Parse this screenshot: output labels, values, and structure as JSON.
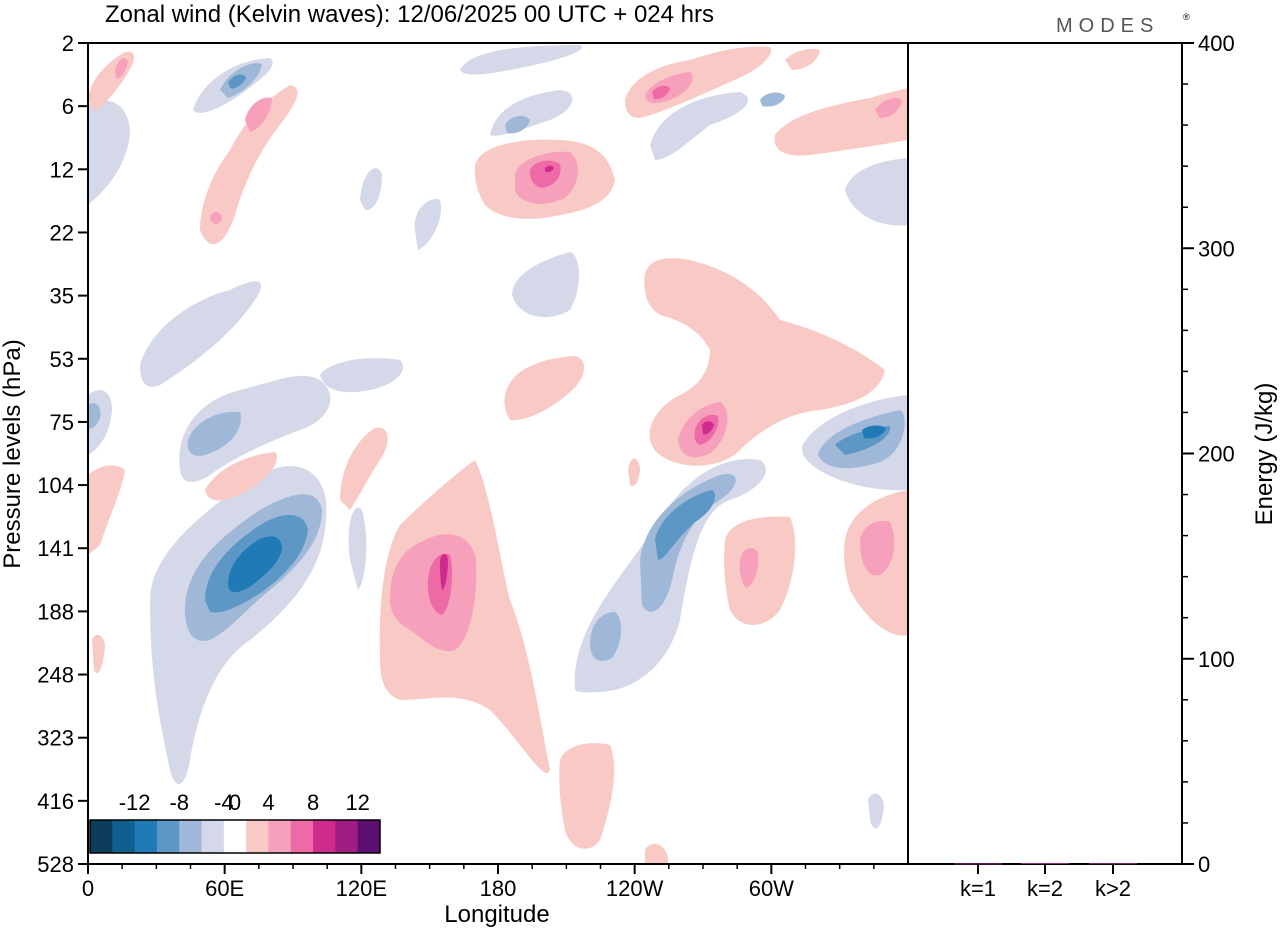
{
  "chart_data": [
    {
      "type": "heatmap",
      "title": "Zonal wind (Kelvin waves):  12/06/2025  00 UTC  + 024 hrs",
      "xlabel": "Longitude",
      "ylabel": "Pressure levels (hPa)",
      "x_ticks": [
        "0",
        "60E",
        "120E",
        "180",
        "120W",
        "60W"
      ],
      "x_tick_degrees": [
        0,
        60,
        120,
        180,
        240,
        300
      ],
      "xlim": [
        0,
        360
      ],
      "y_ticks": [
        "2",
        "6",
        "12",
        "22",
        "35",
        "53",
        "75",
        "104",
        "141",
        "188",
        "248",
        "323",
        "416",
        "528"
      ],
      "colorbar": {
        "labels": [
          "-12",
          "-8",
          "-4",
          "0",
          "4",
          "8",
          "12"
        ],
        "levels": [
          -14,
          -12,
          -10,
          -8,
          -6,
          -4,
          -2,
          2,
          4,
          6,
          8,
          10,
          12,
          14
        ],
        "colors": [
          "#0c3d5c",
          "#0f5f8f",
          "#1f7ab5",
          "#5d97c6",
          "#9fb8d8",
          "#d4d8e8",
          "#ffffff",
          "#f9c9c5",
          "#f6a0bb",
          "#ee6aa6",
          "#cf2b8e",
          "#a01c83",
          "#5c0f70"
        ]
      },
      "features": [
        {
          "sign": "negative",
          "level": -12,
          "center_lon": 62,
          "center_p": 141
        },
        {
          "sign": "negative",
          "level": -8,
          "center_lon": 80,
          "center_p": 141
        },
        {
          "sign": "negative",
          "level": -6,
          "center_lon": 230,
          "center_p": 141
        },
        {
          "sign": "negative",
          "level": -6,
          "center_lon": 345,
          "center_p": 75
        },
        {
          "sign": "negative",
          "level": -6,
          "center_lon": 58,
          "center_p": 4
        },
        {
          "sign": "positive",
          "level": 8,
          "center_lon": 155,
          "center_p": 141
        },
        {
          "sign": "positive",
          "level": 8,
          "center_lon": 200,
          "center_p": 12
        },
        {
          "sign": "positive",
          "level": 8,
          "center_lon": 275,
          "center_p": 75
        },
        {
          "sign": "positive",
          "level": 6,
          "center_lon": 345,
          "center_p": 141
        },
        {
          "sign": "positive",
          "level": 6,
          "center_lon": 285,
          "center_p": 141
        },
        {
          "sign": "positive",
          "level": 8,
          "center_lon": 255,
          "center_p": 5
        }
      ]
    },
    {
      "type": "bar",
      "ylabel": "Energy (J/kg)",
      "categories": [
        "k=1",
        "k=2",
        "k>2"
      ],
      "values": [
        0.3,
        0.5,
        0.4
      ],
      "ylim": [
        0,
        400
      ],
      "y_ticks": [
        "0",
        "100",
        "200",
        "300",
        "400"
      ],
      "bar_color": "#8a2f7a"
    }
  ],
  "logo": "MODES",
  "colors": {
    "frame": "#000000",
    "background": "#ffffff"
  }
}
